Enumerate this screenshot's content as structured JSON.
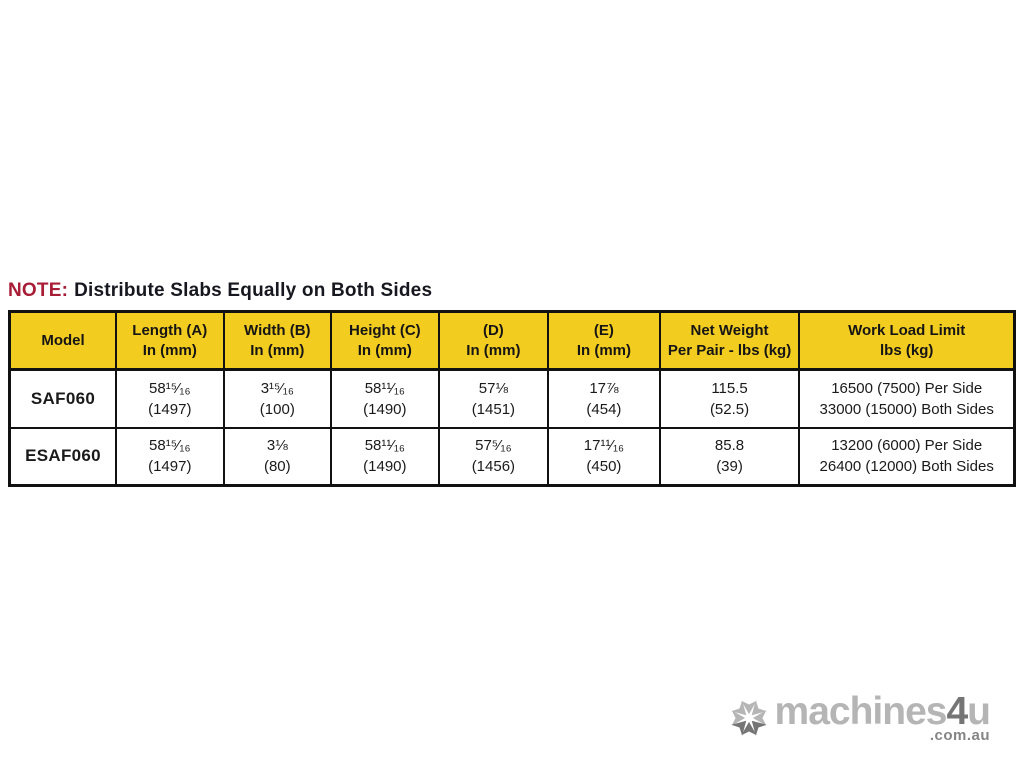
{
  "note": {
    "label": "NOTE:",
    "text": "Distribute Slabs Equally on Both Sides",
    "label_color": "#A81D35"
  },
  "table": {
    "header_bg": "#F3CC20",
    "border_color": "#111111",
    "columns": [
      {
        "lines": [
          "Model"
        ]
      },
      {
        "lines": [
          "Length (A)",
          "In (mm)"
        ]
      },
      {
        "lines": [
          "Width (B)",
          "In (mm)"
        ]
      },
      {
        "lines": [
          "Height (C)",
          "In (mm)"
        ]
      },
      {
        "lines": [
          "(D)",
          "In (mm)"
        ]
      },
      {
        "lines": [
          "(E)",
          "In (mm)"
        ]
      },
      {
        "lines": [
          "Net Weight",
          "Per Pair - lbs (kg)"
        ]
      },
      {
        "lines": [
          "Work Load Limit",
          "lbs (kg)"
        ]
      }
    ],
    "rows": [
      {
        "cells": [
          [
            "SAF060"
          ],
          [
            "58¹⁵⁄₁₆",
            "(1497)"
          ],
          [
            "3¹⁵⁄₁₆",
            "(100)"
          ],
          [
            "58¹¹⁄₁₆",
            "(1490)"
          ],
          [
            "57⅛",
            "(1451)"
          ],
          [
            "17⅞",
            "(454)"
          ],
          [
            "115.5",
            "(52.5)"
          ],
          [
            "16500 (7500) Per Side",
            "33000 (15000) Both Sides"
          ]
        ]
      },
      {
        "cells": [
          [
            "ESAF060"
          ],
          [
            "58¹⁵⁄₁₆",
            "(1497)"
          ],
          [
            "3⅛",
            "(80)"
          ],
          [
            "58¹¹⁄₁₆",
            "(1490)"
          ],
          [
            "57⁵⁄₁₆",
            "(1456)"
          ],
          [
            "17¹¹⁄₁₆",
            "(450)"
          ],
          [
            "85.8",
            "(39)"
          ],
          [
            "13200 (6000) Per Side",
            "26400 (12000) Both Sides"
          ]
        ]
      }
    ]
  },
  "watermark": {
    "icon": "starburst-arrows-icon",
    "brand_main": "machines",
    "brand_accent": "4",
    "brand_end": "u",
    "domain": ".com.au",
    "light_gray": "#b5b5b5",
    "dark_gray": "#757575"
  }
}
